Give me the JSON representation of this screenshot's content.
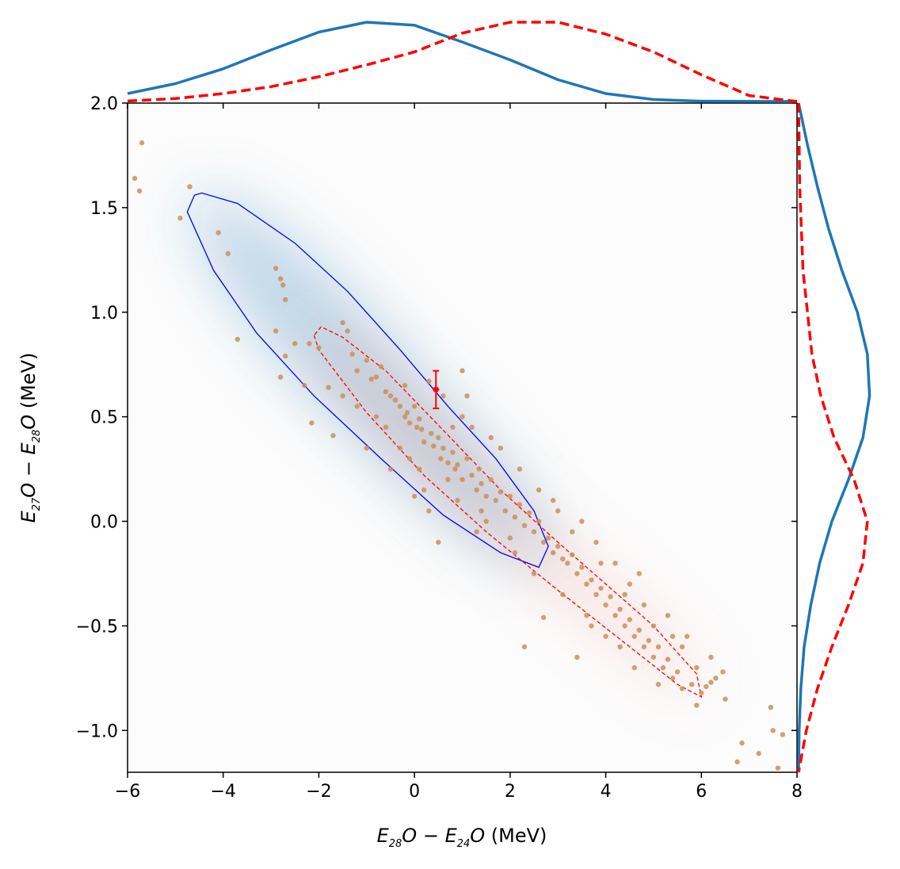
{
  "chart_data": {
    "type": "scatter",
    "xlim": [
      -6,
      8
    ],
    "ylim": [
      -1.2,
      2.0
    ],
    "x_ticks": [
      -6,
      -4,
      -2,
      0,
      2,
      4,
      6,
      8
    ],
    "x_tick_labels": [
      "−6",
      "−4",
      "−2",
      "0",
      "2",
      "4",
      "6",
      "8"
    ],
    "y_ticks": [
      -1.0,
      -0.5,
      0.0,
      0.5,
      1.0,
      1.5,
      2.0
    ],
    "y_tick_labels": [
      "−1.0",
      "−0.5",
      "0.0",
      "0.5",
      "1.0",
      "1.5",
      "2.0"
    ],
    "xlabel": {
      "e1": "E",
      "s1": "28",
      "o1": "O",
      "minus": " − ",
      "e2": "E",
      "s2": "24",
      "o2": "O",
      "unit": " (MeV)"
    },
    "ylabel": {
      "e1": "E",
      "s1": "27",
      "o1": "O",
      "minus": " − ",
      "e2": "E",
      "s2": "28",
      "o2": "O",
      "unit": " (MeV)"
    },
    "grid": false,
    "colors": {
      "blue": "#1f77b4",
      "contour_blue": "#0000ff",
      "red": "#ff0000",
      "points": "#c8915a"
    },
    "series": [
      {
        "style": "blue density region with solid contour",
        "contour": [
          [
            -4.6,
            1.56
          ],
          [
            -4.75,
            1.48
          ],
          [
            -4.2,
            1.2
          ],
          [
            -3.3,
            0.9
          ],
          [
            -2.1,
            0.6
          ],
          [
            -0.7,
            0.3
          ],
          [
            0.6,
            0.03
          ],
          [
            1.8,
            -0.15
          ],
          [
            2.6,
            -0.22
          ],
          [
            2.8,
            -0.12
          ],
          [
            2.5,
            0.05
          ],
          [
            1.7,
            0.3
          ],
          [
            0.7,
            0.55
          ],
          [
            -0.3,
            0.82
          ],
          [
            -1.4,
            1.1
          ],
          [
            -2.5,
            1.33
          ],
          [
            -3.7,
            1.52
          ],
          [
            -4.45,
            1.57
          ]
        ],
        "marginal_x": [
          [
            -6,
            0.08
          ],
          [
            -5,
            0.18
          ],
          [
            -4,
            0.33
          ],
          [
            -3,
            0.52
          ],
          [
            -2,
            0.7
          ],
          [
            -1,
            0.8
          ],
          [
            0,
            0.77
          ],
          [
            1,
            0.6
          ],
          [
            2,
            0.42
          ],
          [
            3,
            0.22
          ],
          [
            4,
            0.08
          ],
          [
            5,
            0.02
          ],
          [
            6,
            0.003
          ],
          [
            8,
            0
          ]
        ],
        "marginal_y": [
          [
            2.0,
            0.0
          ],
          [
            1.8,
            0.08
          ],
          [
            1.6,
            0.17
          ],
          [
            1.4,
            0.27
          ],
          [
            1.2,
            0.39
          ],
          [
            1.0,
            0.53
          ],
          [
            0.8,
            0.62
          ],
          [
            0.6,
            0.64
          ],
          [
            0.4,
            0.58
          ],
          [
            0.2,
            0.45
          ],
          [
            0.0,
            0.3
          ],
          [
            -0.2,
            0.19
          ],
          [
            -0.4,
            0.11
          ],
          [
            -0.6,
            0.05
          ],
          [
            -0.8,
            0.02
          ],
          [
            -1.0,
            0.005
          ],
          [
            -1.2,
            0.0
          ]
        ]
      },
      {
        "style": "red density region with dashed contour",
        "contour": [
          [
            -2.1,
            0.89
          ],
          [
            -2.0,
            0.82
          ],
          [
            -1.0,
            0.52
          ],
          [
            0.2,
            0.22
          ],
          [
            1.5,
            -0.05
          ],
          [
            3.0,
            -0.33
          ],
          [
            4.5,
            -0.6
          ],
          [
            5.5,
            -0.78
          ],
          [
            6.0,
            -0.84
          ],
          [
            5.9,
            -0.73
          ],
          [
            5.0,
            -0.5
          ],
          [
            4.0,
            -0.3
          ],
          [
            3.0,
            -0.1
          ],
          [
            1.8,
            0.15
          ],
          [
            0.5,
            0.46
          ],
          [
            -0.6,
            0.72
          ],
          [
            -1.5,
            0.88
          ],
          [
            -1.95,
            0.93
          ]
        ],
        "marginal_x": [
          [
            -6,
            0.005
          ],
          [
            -5,
            0.03
          ],
          [
            -4,
            0.08
          ],
          [
            -3,
            0.15
          ],
          [
            -2,
            0.25
          ],
          [
            -1,
            0.37
          ],
          [
            0,
            0.5
          ],
          [
            1,
            0.69
          ],
          [
            2,
            0.8
          ],
          [
            3,
            0.8
          ],
          [
            4,
            0.68
          ],
          [
            5,
            0.5
          ],
          [
            6,
            0.27
          ],
          [
            7,
            0.06
          ],
          [
            8,
            0.0
          ]
        ],
        "marginal_y": [
          [
            2.0,
            0.0
          ],
          [
            1.6,
            0.01
          ],
          [
            1.2,
            0.04
          ],
          [
            0.8,
            0.12
          ],
          [
            0.6,
            0.2
          ],
          [
            0.4,
            0.32
          ],
          [
            0.2,
            0.5
          ],
          [
            0.0,
            0.62
          ],
          [
            -0.2,
            0.58
          ],
          [
            -0.4,
            0.45
          ],
          [
            -0.6,
            0.3
          ],
          [
            -0.8,
            0.17
          ],
          [
            -1.0,
            0.07
          ],
          [
            -1.2,
            0.0
          ]
        ]
      }
    ],
    "reference_point": {
      "x": 0.45,
      "y": 0.63,
      "xerr": 0.07,
      "yerr": 0.09
    },
    "scatter": [
      [
        -5.85,
        1.64
      ],
      [
        -5.75,
        1.58
      ],
      [
        -5.7,
        1.81
      ],
      [
        -4.9,
        1.45
      ],
      [
        -4.7,
        1.6
      ],
      [
        -4.1,
        1.38
      ],
      [
        -3.9,
        1.28
      ],
      [
        -3.7,
        0.87
      ],
      [
        -2.9,
        1.21
      ],
      [
        -2.9,
        0.91
      ],
      [
        -2.8,
        1.16
      ],
      [
        -2.75,
        1.13
      ],
      [
        -2.7,
        1.06
      ],
      [
        -2.8,
        0.69
      ],
      [
        -2.7,
        0.79
      ],
      [
        -2.3,
        0.65
      ],
      [
        -2.2,
        0.85
      ],
      [
        -2.15,
        0.47
      ],
      [
        -2.0,
        0.83
      ],
      [
        -1.8,
        0.64
      ],
      [
        -1.7,
        0.41
      ],
      [
        -1.5,
        0.95
      ],
      [
        -1.4,
        0.91
      ],
      [
        -1.3,
        0.8
      ],
      [
        -1.2,
        0.72
      ],
      [
        -1.0,
        0.77
      ],
      [
        -0.9,
        0.68
      ],
      [
        -0.8,
        0.69
      ],
      [
        -0.7,
        0.74
      ],
      [
        -0.6,
        0.62
      ],
      [
        -0.5,
        0.6
      ],
      [
        -0.4,
        0.58
      ],
      [
        -0.3,
        0.55
      ],
      [
        -0.2,
        0.5
      ],
      [
        -0.15,
        0.52
      ],
      [
        -0.1,
        0.47
      ],
      [
        0.0,
        0.55
      ],
      [
        0.05,
        0.45
      ],
      [
        0.1,
        0.49
      ],
      [
        0.15,
        0.44
      ],
      [
        0.2,
        0.38
      ],
      [
        0.3,
        0.67
      ],
      [
        0.35,
        0.42
      ],
      [
        0.4,
        0.36
      ],
      [
        0.5,
        0.4
      ],
      [
        0.55,
        0.3
      ],
      [
        0.6,
        0.35
      ],
      [
        0.7,
        0.28
      ],
      [
        0.8,
        0.33
      ],
      [
        0.85,
        0.25
      ],
      [
        0.9,
        0.27
      ],
      [
        1.0,
        0.72
      ],
      [
        1.0,
        0.2
      ],
      [
        1.1,
        0.3
      ],
      [
        1.2,
        0.22
      ],
      [
        1.3,
        0.15
      ],
      [
        1.35,
        0.25
      ],
      [
        1.4,
        0.18
      ],
      [
        1.5,
        0.12
      ],
      [
        1.6,
        0.2
      ],
      [
        1.7,
        0.1
      ],
      [
        1.8,
        0.14
      ],
      [
        1.9,
        0.05
      ],
      [
        2.0,
        0.12
      ],
      [
        2.1,
        0.02
      ],
      [
        2.2,
        0.08
      ],
      [
        2.3,
        -0.02
      ],
      [
        2.4,
        0.04
      ],
      [
        2.5,
        -0.05
      ],
      [
        2.6,
        0.0
      ],
      [
        2.7,
        -0.1
      ],
      [
        2.8,
        -0.08
      ],
      [
        2.9,
        -0.15
      ],
      [
        3.0,
        -0.12
      ],
      [
        3.1,
        -0.18
      ],
      [
        3.2,
        -0.2
      ],
      [
        3.3,
        -0.16
      ],
      [
        3.4,
        -0.25
      ],
      [
        3.5,
        -0.22
      ],
      [
        3.6,
        -0.3
      ],
      [
        3.7,
        -0.28
      ],
      [
        3.8,
        -0.35
      ],
      [
        3.9,
        -0.32
      ],
      [
        4.0,
        -0.4
      ],
      [
        4.1,
        -0.36
      ],
      [
        4.2,
        -0.45
      ],
      [
        4.3,
        -0.42
      ],
      [
        4.4,
        -0.5
      ],
      [
        4.5,
        -0.47
      ],
      [
        4.6,
        -0.55
      ],
      [
        4.7,
        -0.52
      ],
      [
        4.8,
        -0.6
      ],
      [
        4.9,
        -0.57
      ],
      [
        5.0,
        -0.65
      ],
      [
        5.1,
        -0.6
      ],
      [
        5.2,
        -0.7
      ],
      [
        5.3,
        -0.66
      ],
      [
        5.4,
        -0.75
      ],
      [
        5.5,
        -0.72
      ],
      [
        5.6,
        -0.8
      ],
      [
        5.7,
        -0.55
      ],
      [
        5.8,
        -0.78
      ],
      [
        5.9,
        -0.88
      ],
      [
        6.0,
        -0.82
      ],
      [
        6.1,
        -0.79
      ],
      [
        6.2,
        -0.77
      ],
      [
        6.3,
        -0.75
      ],
      [
        6.45,
        -0.72
      ],
      [
        6.5,
        -0.85
      ],
      [
        6.75,
        -1.15
      ],
      [
        6.85,
        -1.06
      ],
      [
        7.2,
        -1.11
      ],
      [
        7.45,
        -0.89
      ],
      [
        7.5,
        -1.0
      ],
      [
        7.6,
        -1.18
      ],
      [
        7.7,
        -1.02
      ],
      [
        3.4,
        -0.65
      ],
      [
        2.3,
        -0.6
      ],
      [
        2.7,
        -0.46
      ],
      [
        0.3,
        0.05
      ],
      [
        0.0,
        0.12
      ],
      [
        -0.5,
        0.25
      ],
      [
        -0.8,
        0.5
      ],
      [
        -1.2,
        0.55
      ],
      [
        -0.1,
        0.3
      ],
      [
        0.6,
        0.6
      ],
      [
        1.2,
        0.45
      ],
      [
        1.5,
        0.0
      ],
      [
        2.0,
        -0.08
      ],
      [
        3.0,
        0.05
      ],
      [
        3.5,
        0.0
      ],
      [
        4.0,
        -0.55
      ],
      [
        4.2,
        -0.2
      ],
      [
        3.8,
        -0.1
      ],
      [
        4.5,
        -0.3
      ],
      [
        4.8,
        -0.4
      ],
      [
        5.0,
        -0.5
      ],
      [
        5.3,
        -0.45
      ],
      [
        2.2,
        0.25
      ],
      [
        1.8,
        0.35
      ],
      [
        0.2,
        0.15
      ],
      [
        -0.3,
        0.35
      ],
      [
        1.0,
        0.5
      ],
      [
        0.8,
        0.45
      ],
      [
        -1.5,
        0.6
      ],
      [
        -2.5,
        0.85
      ],
      [
        0.5,
        -0.1
      ],
      [
        1.3,
        -0.05
      ],
      [
        2.5,
        -0.25
      ],
      [
        3.1,
        -0.35
      ],
      [
        3.6,
        -0.45
      ],
      [
        4.3,
        -0.6
      ],
      [
        4.6,
        -0.7
      ],
      [
        5.1,
        -0.78
      ],
      [
        5.6,
        -0.6
      ],
      [
        5.9,
        -0.7
      ],
      [
        6.2,
        -0.65
      ],
      [
        2.9,
        0.1
      ],
      [
        3.3,
        -0.05
      ],
      [
        4.7,
        -0.25
      ],
      [
        1.6,
        0.4
      ],
      [
        0.9,
        0.1
      ],
      [
        -0.6,
        0.45
      ],
      [
        -1.0,
        0.35
      ],
      [
        0.1,
        0.25
      ],
      [
        2.6,
        0.15
      ],
      [
        1.4,
        0.05
      ],
      [
        3.9,
        -0.2
      ],
      [
        4.4,
        -0.35
      ],
      [
        5.4,
        -0.55
      ],
      [
        3.7,
        -0.5
      ],
      [
        2.1,
        -0.15
      ],
      [
        0.7,
        0.2
      ],
      [
        -0.2,
        0.65
      ],
      [
        1.1,
        0.6
      ]
    ]
  }
}
